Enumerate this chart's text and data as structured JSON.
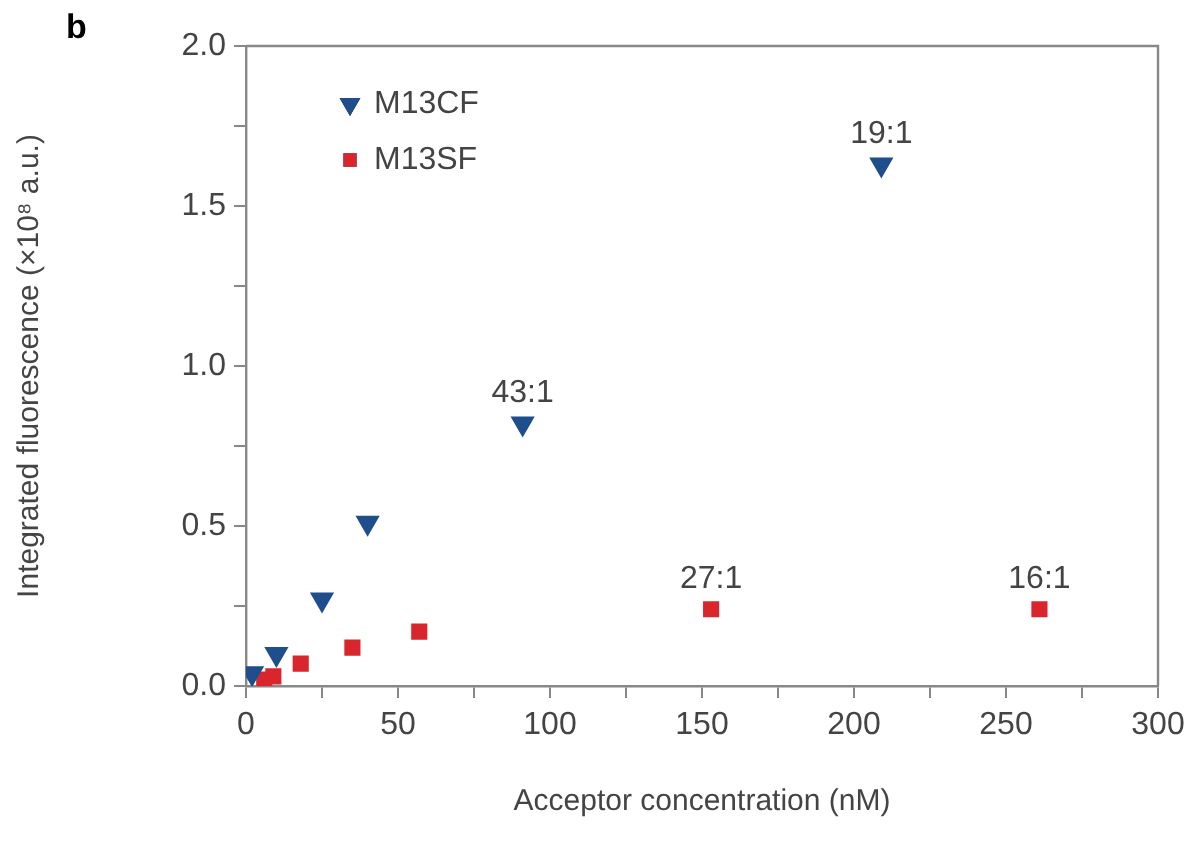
{
  "chart_data": {
    "type": "scatter",
    "xlabel": "Acceptor concentration (nM)",
    "ylabel": "Integrated fluorescence (×10⁸ a.u.)",
    "xlim": [
      0,
      300
    ],
    "ylim": [
      0,
      2.0
    ],
    "xticks": [
      {
        "value": 0,
        "label": "0"
      },
      {
        "value": 25,
        "label": null
      },
      {
        "value": 50,
        "label": "50"
      },
      {
        "value": 75,
        "label": null
      },
      {
        "value": 100,
        "label": "100"
      },
      {
        "value": 125,
        "label": null
      },
      {
        "value": 150,
        "label": "150"
      },
      {
        "value": 175,
        "label": null
      },
      {
        "value": 200,
        "label": "200"
      },
      {
        "value": 225,
        "label": null
      },
      {
        "value": 250,
        "label": "250"
      },
      {
        "value": 275,
        "label": null
      },
      {
        "value": 300,
        "label": "300"
      }
    ],
    "yticks": [
      {
        "value": 0,
        "label": "0.0"
      },
      {
        "value": 0.25,
        "label": null
      },
      {
        "value": 0.5,
        "label": "0.5"
      },
      {
        "value": 0.75,
        "label": null
      },
      {
        "value": 1,
        "label": "1.0"
      },
      {
        "value": 1.25,
        "label": null
      },
      {
        "value": 1.5,
        "label": "1.5"
      },
      {
        "value": 1.75,
        "label": null
      },
      {
        "value": 2,
        "label": "2.0"
      }
    ],
    "grid": false,
    "legend": "top left",
    "series": [
      {
        "name": "M13CF",
        "color": "#1f4e8c",
        "marker": "triangle",
        "x": [
          2,
          10,
          25,
          40,
          91,
          209
        ],
        "values": [
          0.04,
          0.1,
          0.27,
          0.51,
          0.82,
          1.63
        ]
      },
      {
        "name": "M13SF",
        "color": "#d9262c",
        "marker": "square",
        "x": [
          6,
          9,
          18,
          35,
          57,
          153,
          261
        ],
        "values": [
          0.02,
          0.03,
          0.07,
          0.12,
          0.17,
          0.24,
          0.24
        ]
      }
    ],
    "annotations": [
      "b",
      {
        "text": "19:1",
        "x": 209,
        "y": 1.63
      },
      {
        "text": "43:1",
        "x": 91,
        "y": 0.82
      },
      {
        "text": "27:1",
        "x": 153,
        "y": 0.24
      },
      {
        "text": "16:1",
        "x": 261,
        "y": 0.24
      }
    ]
  }
}
